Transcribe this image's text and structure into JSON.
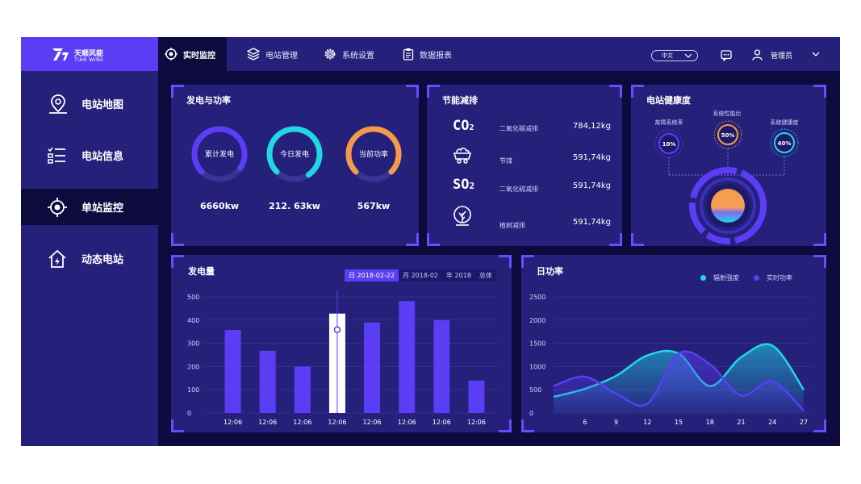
{
  "brand": {
    "name_cn": "天顺风能",
    "name_en": "TIAN WINE"
  },
  "nav": {
    "items": [
      {
        "label": "实时监控",
        "icon": "target-icon"
      },
      {
        "label": "电站管理",
        "icon": "layers-icon"
      },
      {
        "label": "系统设置",
        "icon": "gear-icon"
      },
      {
        "label": "数据报表",
        "icon": "clipboard-icon"
      }
    ],
    "language": "中文",
    "user": "管理员"
  },
  "sidebar": {
    "items": [
      {
        "label": "电站地图",
        "icon": "map-pin-icon"
      },
      {
        "label": "电站信息",
        "icon": "checklist-icon"
      },
      {
        "label": "单站监控",
        "icon": "target-icon"
      },
      {
        "label": "动态电站",
        "icon": "home-bolt-icon"
      }
    ]
  },
  "power": {
    "title": "发电与功率",
    "rings": [
      {
        "label": "累计发电",
        "value": "6660kw",
        "color": "#5b3df5",
        "level": 0.72
      },
      {
        "label": "今日发电",
        "value": "212. 63kw",
        "color": "#1fd8e4",
        "level": 0.78
      },
      {
        "label": "当前功率",
        "value": "567kw",
        "color": "#f59a4a",
        "level": 0.75
      }
    ]
  },
  "emission": {
    "title": "节能减排",
    "rows": [
      {
        "symbol": "CO2",
        "name": "二氧化碳减排",
        "value": "784,12kg"
      },
      {
        "symbol": "coal",
        "name": "节煤",
        "value": "591,74kg"
      },
      {
        "symbol": "SO2",
        "name": "二氧化硫减排",
        "value": "591,74kg"
      },
      {
        "symbol": "tree",
        "name": "植树减排",
        "value": "591,74kg"
      }
    ]
  },
  "health": {
    "title": "电站健康度",
    "indicators": [
      {
        "label": "故障系统率",
        "value": "10%",
        "color": "#5b3df5"
      },
      {
        "label": "系统性能比",
        "value": "50%",
        "color": "#f59a4a"
      },
      {
        "label": "系统健康度",
        "value": "40%",
        "color": "#1fd8e4"
      }
    ]
  },
  "generation": {
    "title": "发电量",
    "tabs": [
      "日 2018-02-22",
      "月 2018-02",
      "年 2018",
      "总体"
    ],
    "chart_data": {
      "type": "bar",
      "categories": [
        "12:06",
        "12:06",
        "12:06",
        "12:06",
        "12:06",
        "12:06",
        "12:06",
        "12:06"
      ],
      "values": [
        358,
        268,
        200,
        428,
        390,
        482,
        400,
        140
      ],
      "highlight_index": 3,
      "ylim": [
        0,
        500
      ],
      "yticks": [
        0,
        100,
        200,
        300,
        400,
        500
      ],
      "color": "#5b3df5",
      "highlight_color": "#ffffff"
    }
  },
  "daily": {
    "title": "日功率",
    "chart_data": {
      "type": "line",
      "x": [
        3,
        6,
        9,
        12,
        15,
        18,
        21,
        24,
        27
      ],
      "xticks": [
        6,
        9,
        12,
        15,
        18,
        21,
        24,
        27
      ],
      "ylim": [
        0,
        2500
      ],
      "yticks": [
        0,
        500,
        1000,
        1500,
        2000,
        2500
      ],
      "series": [
        {
          "name": "辐射强度",
          "color": "#1fd8e4",
          "values": [
            350,
            520,
            800,
            1240,
            1280,
            580,
            1200,
            1450,
            500
          ]
        },
        {
          "name": "实时功率",
          "color": "#5b3df5",
          "values": [
            580,
            780,
            420,
            200,
            1280,
            1050,
            380,
            680,
            50
          ]
        }
      ]
    }
  }
}
